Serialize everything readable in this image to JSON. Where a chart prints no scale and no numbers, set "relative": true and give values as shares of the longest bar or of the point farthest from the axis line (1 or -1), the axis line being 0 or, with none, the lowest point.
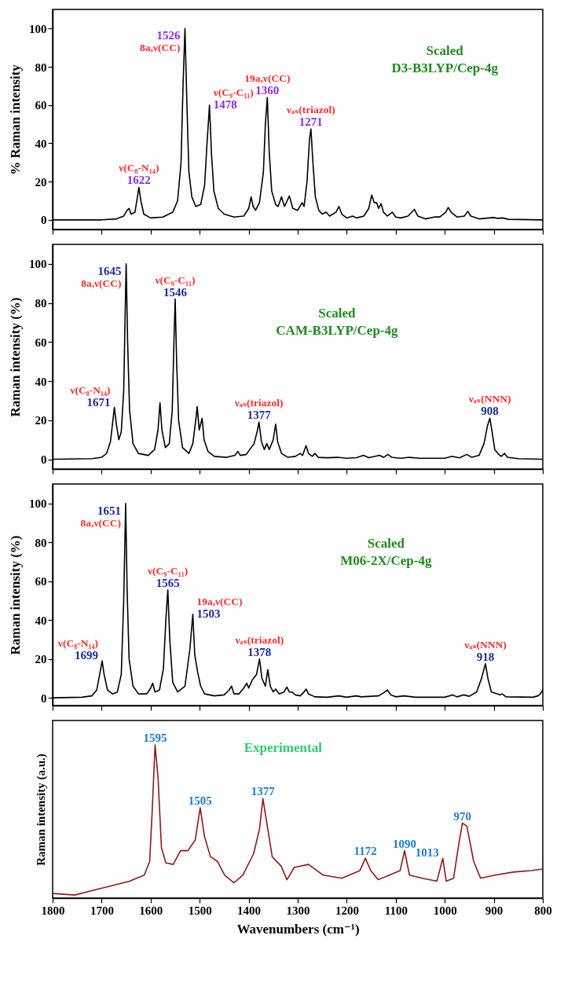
{
  "chart_data": [
    {
      "type": "line",
      "ylabel": "% Raman intensity",
      "xlim": [
        1800,
        800
      ],
      "xticks": [
        1800,
        1700,
        1600,
        1500,
        1400,
        1300,
        1200,
        1100,
        1000,
        900,
        800
      ],
      "ylim": [
        -5,
        110
      ],
      "yticks": [
        0,
        20,
        40,
        60,
        80,
        100
      ],
      "tick_labels": "y",
      "series": [
        {
          "color": "#000000",
          "x": [
            1800,
            1700,
            1670,
            1655,
            1648,
            1644,
            1640,
            1632,
            1627,
            1624,
            1620,
            1614,
            1600,
            1575,
            1555,
            1545,
            1538,
            1534,
            1530,
            1526,
            1522,
            1516,
            1508,
            1498,
            1490,
            1485,
            1480,
            1476,
            1471,
            1462,
            1450,
            1430,
            1410,
            1400,
            1395,
            1391,
            1386,
            1378,
            1370,
            1366,
            1362,
            1358,
            1353,
            1345,
            1340,
            1333,
            1327,
            1317,
            1310,
            1300,
            1291,
            1287,
            1281,
            1276,
            1273,
            1269,
            1264,
            1257,
            1250,
            1242,
            1235,
            1222,
            1216,
            1210,
            1200,
            1188,
            1180,
            1165,
            1155,
            1149,
            1144,
            1139,
            1135,
            1130,
            1125,
            1117,
            1107,
            1100,
            1090,
            1075,
            1062,
            1055,
            1040,
            1021,
            1010,
            998,
            993,
            987,
            982,
            975,
            960,
            953,
            947,
            930,
            901,
            892,
            882,
            870,
            800
          ],
          "values": [
            0,
            0,
            0.5,
            2,
            5,
            6,
            3,
            4,
            12,
            17,
            10,
            3,
            1,
            1.5,
            4,
            10,
            30,
            70,
            100,
            60,
            25,
            12,
            7,
            8,
            18,
            40,
            60,
            35,
            15,
            6,
            3,
            1.5,
            2,
            6,
            12,
            7,
            5,
            9,
            25,
            50,
            64,
            35,
            15,
            8,
            7,
            12,
            7,
            12.5,
            6,
            5,
            9,
            7,
            20,
            42,
            47.5,
            30,
            12,
            5,
            3,
            4,
            2,
            4,
            7,
            3,
            1,
            2,
            1,
            2,
            6,
            13,
            9,
            9,
            6,
            8.5,
            4,
            2,
            4,
            1.5,
            1,
            2,
            5.5,
            2,
            0.5,
            1.5,
            1.5,
            4,
            6.5,
            4,
            3,
            1.5,
            2,
            4.5,
            2,
            0.5,
            1.2,
            0.8,
            1,
            0.3,
            0
          ]
        }
      ],
      "annotations": [
        {
          "text": "ν(C₈-N₁₄)",
          "x": 1624,
          "y": 17
        },
        {
          "text": "1622",
          "x": 1624,
          "y": 17
        },
        {
          "text": "8a,ν(CC)",
          "x": 1530,
          "y": 100
        },
        {
          "text": "1526",
          "x": 1530,
          "y": 100
        },
        {
          "text": "ν(C₉-C₁₁)",
          "x": 1480,
          "y": 60
        },
        {
          "text": "1478",
          "x": 1480,
          "y": 60
        },
        {
          "text": "19a,ν(CC)",
          "x": 1362,
          "y": 64
        },
        {
          "text": "1360",
          "x": 1362,
          "y": 64
        },
        {
          "text": "νₐₛ(triazol)",
          "x": 1273,
          "y": 47.5
        },
        {
          "text": "1271",
          "x": 1273,
          "y": 47.5
        },
        "Scaled",
        "D3-B3LYP/Cep-4g"
      ]
    },
    {
      "type": "line",
      "ylabel": "Raman intensity (%)",
      "xlim": [
        1800,
        800
      ],
      "xticks": [
        1800,
        1700,
        1600,
        1500,
        1400,
        1300,
        1200,
        1100,
        1000,
        900,
        800
      ],
      "ylim": [
        -5,
        110
      ],
      "yticks": [
        0,
        20,
        40,
        60,
        80,
        100
      ],
      "tick_labels": "y",
      "series": [
        {
          "color": "#000000",
          "x": [
            1800,
            1720,
            1700,
            1690,
            1682,
            1677,
            1674,
            1670,
            1665,
            1660,
            1655,
            1652,
            1650,
            1647,
            1643,
            1636,
            1625,
            1605,
            1592,
            1585,
            1581,
            1577,
            1570,
            1562,
            1556,
            1552,
            1550,
            1547,
            1543,
            1535,
            1522,
            1514,
            1508,
            1505,
            1501,
            1497,
            1495,
            1491,
            1483,
            1470,
            1445,
            1428,
            1422,
            1417,
            1405,
            1395,
            1389,
            1382,
            1379,
            1374,
            1368,
            1363,
            1358,
            1350,
            1345,
            1341,
            1333,
            1320,
            1305,
            1295,
            1290,
            1283,
            1278,
            1270,
            1265,
            1258,
            1240,
            1219,
            1200,
            1180,
            1166,
            1155,
            1133,
            1125,
            1116,
            1108,
            1090,
            1073,
            1050,
            1000,
            985,
            970,
            955,
            945,
            930,
            920,
            913,
            908,
            904,
            898,
            890,
            885,
            878,
            872,
            850,
            800
          ],
          "values": [
            0,
            0.3,
            1,
            3,
            9,
            20,
            26.5,
            18,
            10,
            14,
            35,
            75,
            100,
            60,
            25,
            8,
            3,
            2,
            5,
            15,
            29,
            15,
            6,
            8,
            25,
            65,
            82,
            50,
            20,
            6,
            3,
            8,
            20,
            27,
            15,
            19,
            21,
            10,
            4,
            1.5,
            1,
            2,
            4,
            2,
            2.5,
            6,
            8,
            15,
            19,
            9,
            5,
            8,
            5,
            10,
            18,
            9,
            3,
            1,
            1.5,
            3,
            2,
            7,
            3,
            1.5,
            3,
            1,
            0.8,
            1,
            0.5,
            0.8,
            2,
            0.8,
            2,
            1,
            2.5,
            1,
            0.5,
            1,
            0.5,
            0.5,
            1.5,
            0.7,
            2.5,
            1,
            2,
            8,
            17,
            21,
            15,
            5,
            2.5,
            1.5,
            3,
            1,
            0.3,
            0
          ]
        }
      ],
      "annotations": [
        {
          "text": "8a,ν(CC)",
          "x": 1650,
          "y": 100
        },
        {
          "text": "1645",
          "x": 1650,
          "y": 100
        },
        {
          "text": "ν(C₈-N₁₄)",
          "x": 1674,
          "y": 26.5
        },
        {
          "text": "1671",
          "x": 1674,
          "y": 26.5
        },
        {
          "text": "ν(C₉-C₁₁)",
          "x": 1550,
          "y": 82
        },
        {
          "text": "1546",
          "x": 1550,
          "y": 82
        },
        {
          "text": "νₐₛ(triazol)",
          "x": 1379,
          "y": 19
        },
        {
          "text": "1377",
          "x": 1379,
          "y": 19
        },
        {
          "text": "νₐₛ(NNN)",
          "x": 908,
          "y": 21
        },
        {
          "text": "908",
          "x": 908,
          "y": 21
        },
        "Scaled",
        "CAM-B3LYP/Cep-4g"
      ]
    },
    {
      "type": "line",
      "ylabel": "Raman intensity (%)",
      "xlim": [
        1800,
        800
      ],
      "xticks": [
        1800,
        1700,
        1600,
        1500,
        1400,
        1300,
        1200,
        1100,
        1000,
        900,
        800
      ],
      "ylim": [
        -4,
        110
      ],
      "yticks": [
        0,
        20,
        40,
        60,
        80,
        100
      ],
      "tick_labels": "y",
      "series": [
        {
          "color": "#000000",
          "x": [
            1800,
            1740,
            1720,
            1710,
            1704,
            1699,
            1695,
            1688,
            1678,
            1668,
            1660,
            1655,
            1651,
            1648,
            1644,
            1636,
            1625,
            1608,
            1600,
            1596,
            1591,
            1582,
            1574,
            1569,
            1565,
            1561,
            1555,
            1545,
            1530,
            1520,
            1514,
            1510,
            1504,
            1498,
            1490,
            1470,
            1450,
            1440,
            1435,
            1430,
            1420,
            1410,
            1404,
            1400,
            1393,
            1389,
            1384,
            1378,
            1373,
            1366,
            1361,
            1356,
            1350,
            1345,
            1338,
            1328,
            1322,
            1317,
            1312,
            1305,
            1295,
            1287,
            1283,
            1278,
            1265,
            1240,
            1216,
            1200,
            1181,
            1170,
            1135,
            1125,
            1117,
            1110,
            1100,
            1083,
            1060,
            1000,
            984,
            975,
            962,
            950,
            935,
            925,
            917,
            912,
            905,
            892,
            887,
            883,
            875,
            820,
            810,
            805,
            800
          ],
          "values": [
            0,
            0.3,
            1,
            4,
            12,
            19,
            12,
            4,
            2,
            3,
            12,
            50,
            100,
            55,
            20,
            6,
            2,
            2,
            5,
            7.5,
            3,
            4,
            15,
            40,
            55.5,
            30,
            8,
            3,
            6,
            25,
            43,
            22,
            13,
            6,
            2,
            1,
            1.5,
            4,
            6,
            2,
            2,
            5,
            7.5,
            5,
            9,
            10.5,
            12,
            20,
            10,
            6,
            14.5,
            6,
            3,
            4.5,
            2,
            3,
            5.5,
            3,
            3,
            1.5,
            1,
            3,
            4.5,
            2,
            0.5,
            0.3,
            1,
            0.3,
            1,
            0.5,
            1,
            2.5,
            4,
            1.5,
            0.5,
            1,
            0.3,
            0.3,
            1.5,
            0.5,
            1.5,
            0.8,
            3,
            10,
            17.5,
            10,
            3,
            2,
            1.5,
            2,
            0.5,
            0.3,
            1,
            2,
            4
          ]
        }
      ],
      "annotations": [
        {
          "text": "8a,ν(CC)",
          "x": 1651,
          "y": 100
        },
        {
          "text": "1651",
          "x": 1651,
          "y": 100
        },
        {
          "text": "ν(C₈-N₁₄)",
          "x": 1699,
          "y": 19
        },
        {
          "text": "1699",
          "x": 1699,
          "y": 19
        },
        {
          "text": "ν(C₉-C₁₁)",
          "x": 1565,
          "y": 55.5
        },
        {
          "text": "1565",
          "x": 1565,
          "y": 55.5
        },
        {
          "text": "19a,ν(CC)",
          "x": 1514,
          "y": 43
        },
        {
          "text": "1503",
          "x": 1514,
          "y": 43
        },
        {
          "text": "νₐₛ(triazol)",
          "x": 1378,
          "y": 20
        },
        {
          "text": "1378",
          "x": 1378,
          "y": 20
        },
        {
          "text": "νₐₛ(NNN)",
          "x": 917,
          "y": 17.5
        },
        {
          "text": "918",
          "x": 917,
          "y": 17.5
        },
        "Scaled",
        "M06-2X/Cep-4g"
      ]
    },
    {
      "type": "line",
      "relative": true,
      "ylabel": "Raman intensity (a.u.)",
      "xlabel": "Wavenumbers (cm⁻¹)",
      "xlim": [
        1800,
        800
      ],
      "xticks": [
        1800,
        1700,
        1600,
        1500,
        1400,
        1300,
        1200,
        1100,
        1000,
        900,
        800
      ],
      "series": [
        {
          "color": "#8b1a1a",
          "x": [
            1800,
            1755,
            1718,
            1681,
            1643,
            1613,
            1602,
            1597,
            1591,
            1585,
            1578,
            1569,
            1554,
            1539,
            1524,
            1509,
            1499,
            1490,
            1478,
            1464,
            1449,
            1430,
            1412,
            1390,
            1378,
            1371,
            1364,
            1352,
            1334,
            1322,
            1307,
            1278,
            1248,
            1210,
            1173,
            1162,
            1151,
            1136,
            1113,
            1091,
            1082,
            1072,
            1046,
            1016,
            1004,
            997,
            982,
            971,
            964,
            955,
            941,
            927,
            897,
            860,
            823,
            800
          ],
          "values": [
            0.03,
            0.02,
            0.05,
            0.08,
            0.11,
            0.15,
            0.24,
            0.56,
            1,
            0.79,
            0.33,
            0.23,
            0.22,
            0.31,
            0.31,
            0.38,
            0.59,
            0.4,
            0.27,
            0.24,
            0.15,
            0.1,
            0.15,
            0.29,
            0.45,
            0.65,
            0.51,
            0.27,
            0.21,
            0.12,
            0.2,
            0.22,
            0.15,
            0.13,
            0.18,
            0.26,
            0.18,
            0.12,
            0.15,
            0.18,
            0.31,
            0.15,
            0.13,
            0.11,
            0.26,
            0.11,
            0.13,
            0.36,
            0.49,
            0.47,
            0.24,
            0.13,
            0.15,
            0.17,
            0.18,
            0.19
          ]
        }
      ],
      "annotations": [
        {
          "text": "1595",
          "x": 1591,
          "y": 1
        },
        {
          "text": "1505",
          "x": 1499,
          "y": 0.59
        },
        {
          "text": "1377",
          "x": 1371,
          "y": 0.65
        },
        {
          "text": "1172",
          "x": 1162,
          "y": 0.26
        },
        {
          "text": "1090",
          "x": 1082,
          "y": 0.31
        },
        {
          "text": "1013",
          "x": 1004,
          "y": 0.26
        },
        {
          "text": "970",
          "x": 964,
          "y": 0.49
        },
        "Experimental"
      ]
    }
  ]
}
